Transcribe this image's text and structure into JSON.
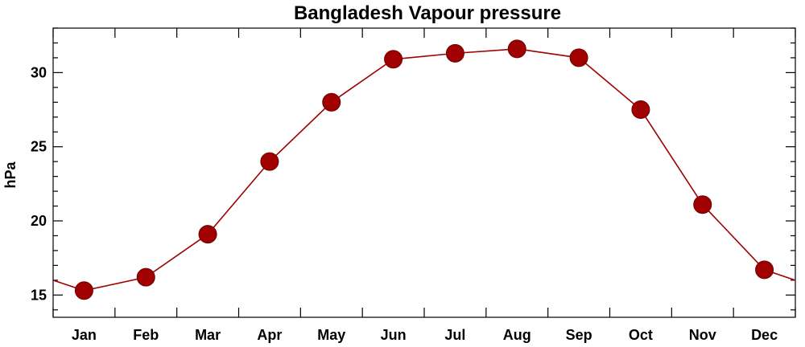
{
  "chart_data": {
    "type": "line",
    "title": "Bangladesh Vapour pressure",
    "xlabel": "",
    "ylabel": "hPa",
    "categories": [
      "Jan",
      "Feb",
      "Mar",
      "Apr",
      "May",
      "Jun",
      "Jul",
      "Aug",
      "Sep",
      "Oct",
      "Nov",
      "Dec"
    ],
    "values": [
      15.3,
      16.2,
      19.1,
      24.0,
      28.0,
      30.9,
      31.3,
      31.6,
      31.0,
      27.5,
      21.1,
      16.7
    ],
    "ylim": [
      13.5,
      33.0
    ],
    "yticks": [
      15,
      20,
      25,
      30
    ],
    "wrap_edges": true,
    "grid": false,
    "colors": {
      "series": "#a00000",
      "frame": "#000000"
    }
  }
}
